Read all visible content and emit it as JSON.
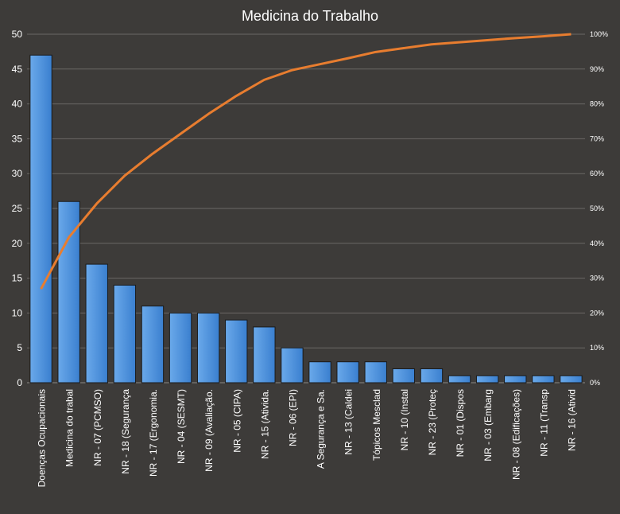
{
  "chart_data": {
    "type": "bar",
    "title": "Medicina do Trabalho",
    "categories": [
      "Doenças Ocupacionais",
      "Medicina do trabal",
      "NR - 07 (PCMSO)",
      "NR - 18 (Segurança",
      "NR - 17 (Ergonomia.",
      "NR - 04 (SESMT)",
      "NR - 09 (Avaliação.",
      "NR - 05 (CIPA)",
      "NR - 15 (Ativida.",
      "NR - 06 (EPI)",
      "A Segurança e Sa.",
      "NR - 13 (Caldei",
      "Tópicos Mesclad",
      "NR - 10 (Instal",
      "NR - 23 (Proteç",
      "NR - 01 (Dispos",
      "NR - 03 (Embarg",
      "NR - 08 (Edificações)",
      "NR - 11 (Transp",
      "NR - 16 (Ativid"
    ],
    "series": [
      {
        "type": "bar",
        "axis": "left",
        "color": "#4a90d9",
        "values": [
          47,
          26,
          17,
          14,
          11,
          10,
          10,
          9,
          8,
          5,
          3,
          3,
          3,
          2,
          2,
          1,
          1,
          1,
          1,
          1
        ]
      },
      {
        "type": "line",
        "axis": "right",
        "color": "#e87d2f",
        "values": [
          26.9,
          41.7,
          51.4,
          59.4,
          65.7,
          71.4,
          77.1,
          82.3,
          86.9,
          89.7,
          91.4,
          93.1,
          94.9,
          96.0,
          97.1,
          97.7,
          98.3,
          98.9,
          99.4,
          100.0
        ]
      }
    ],
    "y_left": {
      "min": 0,
      "max": 50,
      "step": 5,
      "ticks": [
        "0",
        "5",
        "10",
        "15",
        "20",
        "25",
        "30",
        "35",
        "40",
        "45",
        "50"
      ]
    },
    "y_right": {
      "min": 0,
      "max": 100,
      "step": 10,
      "ticks": [
        "0%",
        "10%",
        "20%",
        "30%",
        "40%",
        "50%",
        "60%",
        "70%",
        "80%",
        "90%",
        "100%"
      ]
    },
    "grid": "horizontal",
    "legend": "none"
  }
}
